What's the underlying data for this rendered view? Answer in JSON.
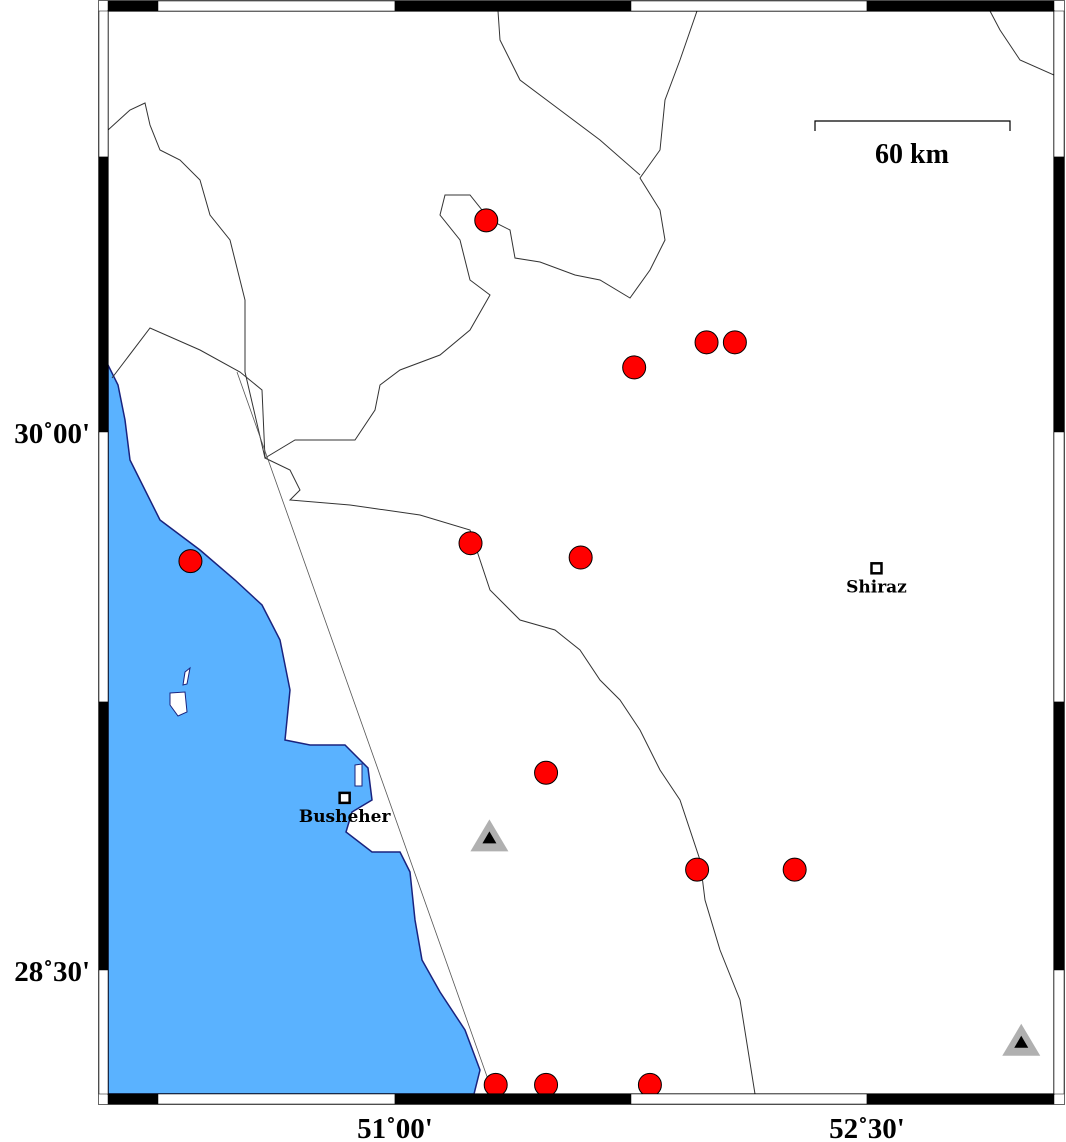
{
  "map": {
    "colors": {
      "sea": "#5ab2ff",
      "coast": "#1a237e",
      "event": "#ff0000",
      "station": "#b0b0b0"
    },
    "axes": {
      "x_ticks": [
        {
          "lon": 51.0,
          "label": "51˚00'"
        },
        {
          "lon": 52.5,
          "label": "52˚30'"
        }
      ],
      "y_ticks": [
        {
          "lat": 30.0,
          "label": "30˚00'"
        },
        {
          "lat": 28.5,
          "label": "28˚30'"
        }
      ]
    },
    "scale_bar": {
      "label": "60 km"
    },
    "cities": [
      {
        "name": "Shiraz",
        "lon": 52.53,
        "lat": 29.62
      },
      {
        "name": "Busheher",
        "lon": 50.84,
        "lat": 28.98
      }
    ],
    "events": [
      {
        "lon": 51.29,
        "lat": 30.59
      },
      {
        "lon": 51.76,
        "lat": 30.18
      },
      {
        "lon": 51.99,
        "lat": 30.25
      },
      {
        "lon": 52.08,
        "lat": 30.25
      },
      {
        "lon": 51.24,
        "lat": 29.69
      },
      {
        "lon": 51.59,
        "lat": 29.65
      },
      {
        "lon": 50.35,
        "lat": 29.64
      },
      {
        "lon": 51.48,
        "lat": 29.05
      },
      {
        "lon": 51.96,
        "lat": 28.78
      },
      {
        "lon": 52.27,
        "lat": 28.78
      },
      {
        "lon": 51.32,
        "lat": 28.18
      },
      {
        "lon": 51.48,
        "lat": 28.18
      },
      {
        "lon": 51.81,
        "lat": 28.18
      }
    ],
    "stations": [
      {
        "lon": 51.3,
        "lat": 28.87
      },
      {
        "lon": 52.99,
        "lat": 28.3
      }
    ]
  }
}
